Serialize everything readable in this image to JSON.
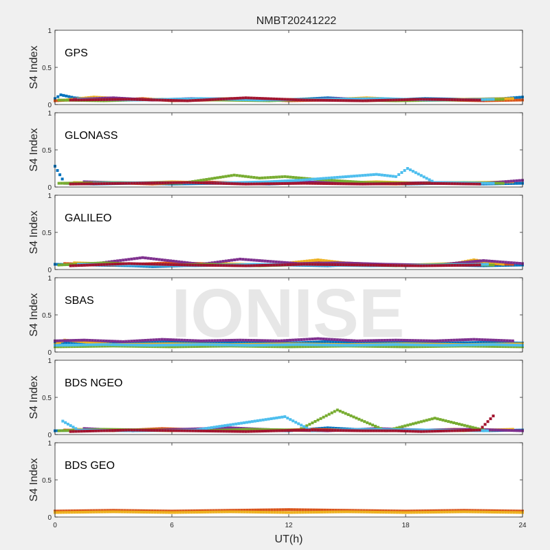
{
  "chart_data": {
    "type": "scatter",
    "title": "NMBT20241222",
    "watermark": "IONISE",
    "xlabel": "UT(h)",
    "ylabel": "S4 Index",
    "xlim": [
      0,
      24
    ],
    "ylim": [
      0,
      1
    ],
    "xticks": [
      "0",
      "6",
      "12",
      "18",
      "24"
    ],
    "yticks": [
      "0",
      "0.5",
      "1"
    ],
    "grid": false,
    "series_colors": [
      "#0072BD",
      "#D95319",
      "#EDB120",
      "#7E2F8E",
      "#77AC30",
      "#4DBEEE",
      "#A2142F"
    ],
    "panels": [
      {
        "label": "GPS",
        "series": [
          {
            "color": "#0072BD",
            "x": [
              0,
              0.3,
              1,
              2,
              3.5,
              5,
              7,
              9,
              11,
              12.5,
              14,
              15.5,
              17,
              19,
              21,
              23,
              24
            ],
            "values": [
              0.08,
              0.13,
              0.09,
              0.07,
              0.08,
              0.06,
              0.07,
              0.08,
              0.06,
              0.07,
              0.09,
              0.07,
              0.06,
              0.08,
              0.07,
              0.08,
              0.1
            ]
          },
          {
            "color": "#D95319",
            "x": [
              0,
              1.5,
              3,
              4.5,
              6,
              8,
              10,
              12,
              14,
              16,
              18,
              20,
              22,
              24
            ],
            "values": [
              0.05,
              0.07,
              0.06,
              0.08,
              0.05,
              0.06,
              0.07,
              0.05,
              0.06,
              0.05,
              0.07,
              0.06,
              0.05,
              0.06
            ]
          },
          {
            "color": "#EDB120",
            "x": [
              0.5,
              2,
              4,
              6.5,
              9,
              11.5,
              13.5,
              16,
              18.5,
              21,
              23.5
            ],
            "values": [
              0.06,
              0.1,
              0.07,
              0.06,
              0.08,
              0.07,
              0.06,
              0.09,
              0.06,
              0.07,
              0.08
            ]
          },
          {
            "color": "#7E2F8E",
            "x": [
              1,
              3,
              5,
              7,
              9.5,
              12,
              14.5,
              17,
              19.5,
              22
            ],
            "values": [
              0.07,
              0.09,
              0.06,
              0.08,
              0.07,
              0.06,
              0.08,
              0.06,
              0.07,
              0.06
            ]
          },
          {
            "color": "#77AC30",
            "x": [
              0.2,
              2.5,
              5.5,
              8.5,
              11,
              13,
              15,
              17.5,
              20.5,
              23
            ],
            "values": [
              0.06,
              0.05,
              0.07,
              0.06,
              0.05,
              0.07,
              0.06,
              0.05,
              0.06,
              0.07
            ]
          },
          {
            "color": "#4DBEEE",
            "x": [
              1.2,
              4.2,
              7.5,
              10.5,
              13.8,
              16.8,
              19.2,
              22.5
            ],
            "values": [
              0.07,
              0.06,
              0.08,
              0.06,
              0.07,
              0.08,
              0.06,
              0.07
            ]
          },
          {
            "color": "#A2142F",
            "x": [
              0.8,
              3.8,
              6.8,
              9.8,
              12.8,
              15.8,
              18.8,
              21.8
            ],
            "values": [
              0.06,
              0.07,
              0.05,
              0.09,
              0.06,
              0.05,
              0.07,
              0.06
            ]
          }
        ]
      },
      {
        "label": "GLONASS",
        "series": [
          {
            "color": "#0072BD",
            "x": [
              0,
              0.5,
              2,
              4,
              6,
              8.5,
              11,
              13,
              15.5,
              18,
              20,
              22,
              24
            ],
            "values": [
              0.28,
              0.05,
              0.04,
              0.05,
              0.04,
              0.05,
              0.04,
              0.06,
              0.05,
              0.04,
              0.05,
              0.04,
              0.05
            ]
          },
          {
            "color": "#D95319",
            "x": [
              0.5,
              2.5,
              5,
              7.5,
              10,
              12.5,
              15,
              17.5,
              20,
              22.5
            ],
            "values": [
              0.05,
              0.06,
              0.04,
              0.07,
              0.05,
              0.06,
              0.05,
              0.04,
              0.06,
              0.05
            ]
          },
          {
            "color": "#EDB120",
            "x": [
              1,
              3.5,
              6,
              9,
              11.5,
              14,
              16.5,
              19,
              21.5,
              23.5
            ],
            "values": [
              0.06,
              0.05,
              0.07,
              0.05,
              0.06,
              0.05,
              0.07,
              0.05,
              0.06,
              0.07
            ]
          },
          {
            "color": "#7E2F8E",
            "x": [
              1.5,
              4.5,
              7,
              9.5,
              12,
              14.5,
              17,
              19.5,
              22,
              24
            ],
            "values": [
              0.07,
              0.05,
              0.06,
              0.05,
              0.07,
              0.06,
              0.05,
              0.06,
              0.05,
              0.09
            ]
          },
          {
            "color": "#77AC30",
            "x": [
              0.2,
              3,
              6.5,
              9.2,
              10.5,
              11.8,
              13.5,
              16,
              18.5,
              21,
              23
            ],
            "values": [
              0.05,
              0.06,
              0.05,
              0.16,
              0.12,
              0.14,
              0.1,
              0.06,
              0.05,
              0.06,
              0.05
            ]
          },
          {
            "color": "#4DBEEE",
            "x": [
              2,
              5.5,
              8,
              11,
              12.5,
              13.5,
              14.5,
              15.5,
              16.5,
              17.5,
              18.1,
              19.5,
              22.5
            ],
            "values": [
              0.05,
              0.06,
              0.05,
              0.07,
              0.09,
              0.11,
              0.13,
              0.15,
              0.17,
              0.14,
              0.25,
              0.06,
              0.05
            ]
          },
          {
            "color": "#A2142F",
            "x": [
              0.8,
              3.8,
              6.8,
              9.8,
              12.8,
              15.8,
              18.8,
              21.8
            ],
            "values": [
              0.04,
              0.05,
              0.06,
              0.04,
              0.05,
              0.04,
              0.05,
              0.04
            ]
          }
        ]
      },
      {
        "label": "GALILEO",
        "series": [
          {
            "color": "#0072BD",
            "x": [
              0,
              2,
              4,
              5,
              6.5,
              8,
              10,
              12,
              14,
              16,
              18,
              20,
              22,
              24
            ],
            "values": [
              0.07,
              0.06,
              0.05,
              0.04,
              0.05,
              0.06,
              0.05,
              0.06,
              0.05,
              0.07,
              0.05,
              0.06,
              0.05,
              0.06
            ]
          },
          {
            "color": "#D95319",
            "x": [
              0.5,
              3,
              6,
              9,
              11.5,
              14,
              16.5,
              19,
              21.5,
              23.5
            ],
            "values": [
              0.08,
              0.06,
              0.09,
              0.07,
              0.06,
              0.1,
              0.07,
              0.06,
              0.08,
              0.07
            ]
          },
          {
            "color": "#EDB120",
            "x": [
              1,
              3.5,
              6.5,
              8.5,
              11,
              13.5,
              15.5,
              18,
              20.5,
              21.5,
              23
            ],
            "values": [
              0.09,
              0.07,
              0.06,
              0.08,
              0.06,
              0.13,
              0.07,
              0.06,
              0.08,
              0.13,
              0.07
            ]
          },
          {
            "color": "#7E2F8E",
            "x": [
              1.5,
              4.5,
              7.5,
              9.5,
              12.5,
              14.5,
              17,
              19.5,
              22,
              24
            ],
            "values": [
              0.06,
              0.16,
              0.07,
              0.14,
              0.08,
              0.09,
              0.07,
              0.06,
              0.12,
              0.08
            ]
          },
          {
            "color": "#77AC30",
            "x": [
              0.2,
              2.5,
              5.5,
              8,
              10.5,
              13,
              15,
              17.5,
              20,
              22.5
            ],
            "values": [
              0.06,
              0.09,
              0.06,
              0.07,
              0.05,
              0.07,
              0.06,
              0.05,
              0.07,
              0.06
            ]
          },
          {
            "color": "#4DBEEE",
            "x": [
              1.2,
              4.2,
              7.2,
              10.2,
              13.2,
              16.2,
              19.2,
              22.2
            ],
            "values": [
              0.07,
              0.06,
              0.05,
              0.07,
              0.06,
              0.05,
              0.06,
              0.07
            ]
          },
          {
            "color": "#A2142F",
            "x": [
              0.8,
              3.8,
              6.8,
              9.8,
              12.8,
              15.8,
              18.8,
              21.8
            ],
            "values": [
              0.05,
              0.08,
              0.06,
              0.05,
              0.07,
              0.06,
              0.05,
              0.06
            ]
          }
        ]
      },
      {
        "label": "SBAS",
        "series": [
          {
            "color": "#0072BD",
            "x": [
              0,
              2,
              4,
              6,
              8,
              10,
              12,
              14,
              16,
              18,
              20,
              22,
              24
            ],
            "values": [
              0.12,
              0.13,
              0.12,
              0.14,
              0.12,
              0.13,
              0.12,
              0.14,
              0.12,
              0.13,
              0.12,
              0.13,
              0.12
            ]
          },
          {
            "color": "#EDB120",
            "x": [
              0,
              0.5,
              3,
              6,
              9,
              12,
              15,
              18,
              21,
              24
            ],
            "values": [
              0.1,
              0.16,
              0.1,
              0.11,
              0.1,
              0.11,
              0.1,
              0.11,
              0.1,
              0.11
            ]
          },
          {
            "color": "#7E2F8E",
            "x": [
              0,
              1.5,
              3.5,
              5.5,
              7.5,
              9.5,
              11.5,
              13.5,
              15.5,
              17.5,
              19.5,
              21.5,
              23.5
            ],
            "values": [
              0.15,
              0.16,
              0.14,
              0.17,
              0.15,
              0.16,
              0.15,
              0.18,
              0.15,
              0.16,
              0.15,
              0.17,
              0.15
            ]
          },
          {
            "color": "#77AC30",
            "x": [
              0,
              3,
              6,
              9,
              12,
              15,
              18,
              21,
              24
            ],
            "values": [
              0.07,
              0.08,
              0.07,
              0.08,
              0.07,
              0.08,
              0.07,
              0.08,
              0.07
            ]
          },
          {
            "color": "#4DBEEE",
            "x": [
              0,
              2.5,
              5,
              7.5,
              10,
              12.5,
              15,
              17.5,
              20,
              22.5,
              24
            ],
            "values": [
              0.09,
              0.1,
              0.09,
              0.1,
              0.09,
              0.1,
              0.09,
              0.1,
              0.09,
              0.1,
              0.09
            ]
          }
        ]
      },
      {
        "label": "BDS NGEO",
        "series": [
          {
            "color": "#0072BD",
            "x": [
              0,
              2,
              4,
              6,
              8,
              10,
              12,
              14,
              16,
              18,
              20,
              22,
              24
            ],
            "values": [
              0.05,
              0.06,
              0.05,
              0.07,
              0.05,
              0.06,
              0.05,
              0.09,
              0.06,
              0.05,
              0.06,
              0.05,
              0.06
            ]
          },
          {
            "color": "#D95319",
            "x": [
              0.5,
              3,
              5.5,
              8,
              10.5,
              13,
              15.5,
              18,
              20.5,
              23
            ],
            "values": [
              0.06,
              0.05,
              0.08,
              0.06,
              0.05,
              0.07,
              0.06,
              0.05,
              0.07,
              0.06
            ]
          },
          {
            "color": "#EDB120",
            "x": [
              1,
              3.5,
              6,
              8.5,
              11,
              13.5,
              16,
              18.5,
              21,
              23.5
            ],
            "values": [
              0.07,
              0.06,
              0.05,
              0.07,
              0.06,
              0.05,
              0.07,
              0.06,
              0.05,
              0.07
            ]
          },
          {
            "color": "#7E2F8E",
            "x": [
              1.5,
              4,
              6.5,
              9,
              11.5,
              14,
              16.5,
              19,
              21.5,
              24
            ],
            "values": [
              0.08,
              0.05,
              0.07,
              0.09,
              0.06,
              0.05,
              0.08,
              0.06,
              0.07,
              0.05
            ]
          },
          {
            "color": "#77AC30",
            "x": [
              0.2,
              2.5,
              5,
              7.5,
              10,
              12.5,
              14.5,
              17,
              19.5,
              22
            ],
            "values": [
              0.05,
              0.07,
              0.06,
              0.05,
              0.07,
              0.06,
              0.33,
              0.05,
              0.22,
              0.06
            ]
          },
          {
            "color": "#4DBEEE",
            "x": [
              0.4,
              1.2,
              4.2,
              7.2,
              11.8,
              13.2,
              15.8,
              19.2,
              22.2
            ],
            "values": [
              0.18,
              0.06,
              0.05,
              0.06,
              0.24,
              0.05,
              0.07,
              0.06,
              0.05
            ]
          },
          {
            "color": "#A2142F",
            "x": [
              0.8,
              3.8,
              6.8,
              9.8,
              12.8,
              15.8,
              17.5,
              18.8,
              21.8,
              22.5
            ],
            "values": [
              0.04,
              0.06,
              0.05,
              0.04,
              0.06,
              0.05,
              0.05,
              0.04,
              0.06,
              0.25
            ]
          }
        ]
      },
      {
        "label": "BDS GEO",
        "series": [
          {
            "color": "#D95319",
            "x": [
              0,
              3,
              6,
              9,
              12,
              15,
              18,
              21,
              24
            ],
            "values": [
              0.08,
              0.09,
              0.08,
              0.09,
              0.1,
              0.09,
              0.08,
              0.09,
              0.08
            ]
          },
          {
            "color": "#EDB120",
            "x": [
              0,
              3,
              6,
              9,
              12,
              15,
              18,
              21,
              24
            ],
            "values": [
              0.06,
              0.07,
              0.06,
              0.07,
              0.06,
              0.07,
              0.06,
              0.07,
              0.06
            ]
          }
        ]
      }
    ]
  }
}
